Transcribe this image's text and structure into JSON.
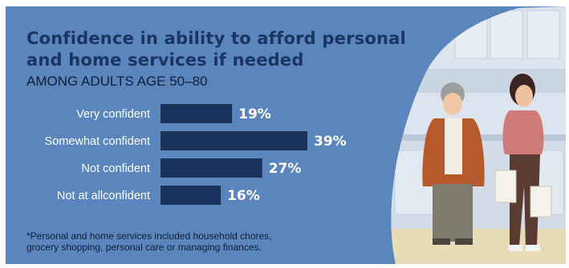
{
  "title_lines": [
    "Confidence in ability to afford personal",
    "and home services if needed"
  ],
  "subtitle": "AMONG ADULTS AGE 50–80",
  "footnote_lines": [
    "*Personal and home services included household chores,",
    "grocery shopping, personal care or managing finances."
  ],
  "colors": {
    "background": "#5a86bd",
    "bar": "#1a315c",
    "value_label": "#ffffff",
    "title": "#1c3461"
  },
  "chart_data": {
    "type": "bar",
    "orientation": "horizontal",
    "categories": [
      "Very confident",
      "Somewhat confident",
      "Not confident",
      "Not at allconfident"
    ],
    "values": [
      19,
      39,
      27,
      16
    ],
    "value_labels": [
      "19%",
      "39%",
      "27%",
      "16%"
    ],
    "unit": "%",
    "xlim": [
      0,
      39
    ],
    "grid": false,
    "legend": "none"
  }
}
